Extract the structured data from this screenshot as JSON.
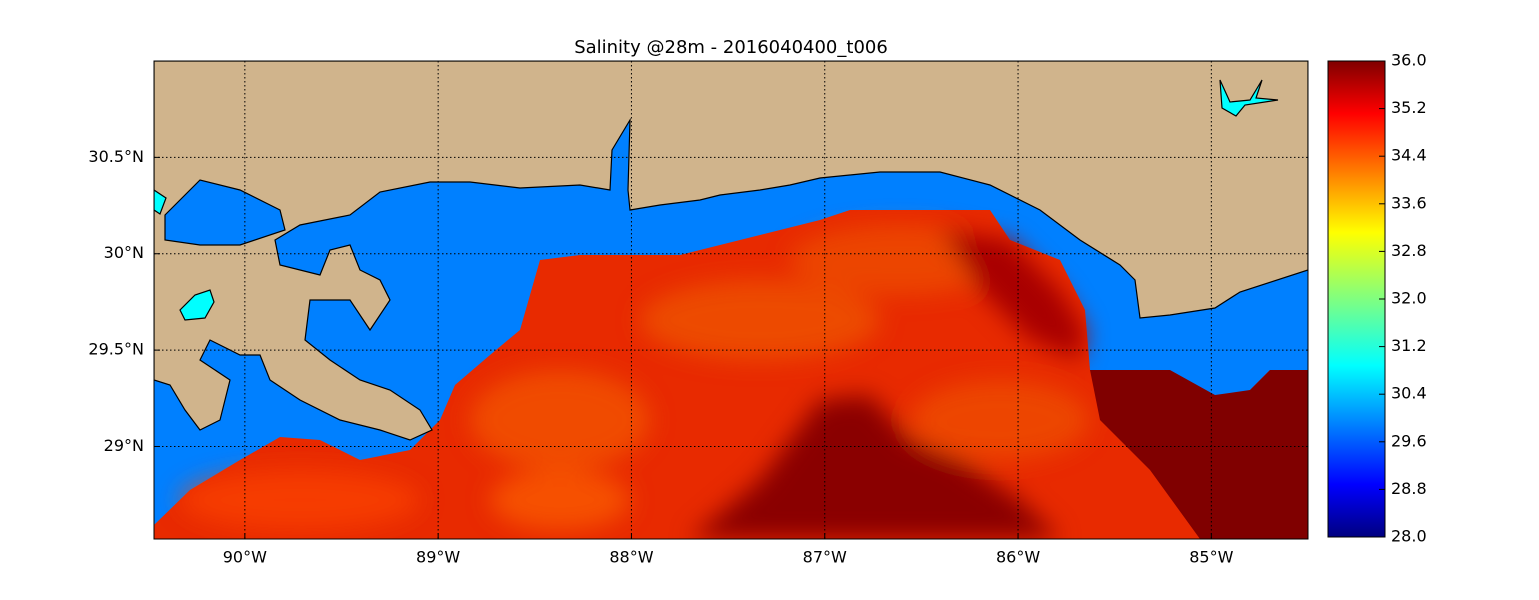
{
  "title": "Salinity @28m - 2016040400_t006",
  "map": {
    "xlim": [
      -90.47,
      -84.5
    ],
    "ylim": [
      28.52,
      31.0
    ],
    "grid": true,
    "xticks": [
      {
        "value": -90,
        "label": "90°W"
      },
      {
        "value": -89,
        "label": "89°W"
      },
      {
        "value": -88,
        "label": "88°W"
      },
      {
        "value": -87,
        "label": "87°W"
      },
      {
        "value": -86,
        "label": "86°W"
      },
      {
        "value": -85,
        "label": "85°W"
      }
    ],
    "yticks": [
      {
        "value": 29,
        "label": "29°N"
      },
      {
        "value": 29.5,
        "label": "29.5°N"
      },
      {
        "value": 30,
        "label": "30°N"
      },
      {
        "value": 30.5,
        "label": "30.5°N"
      }
    ]
  },
  "colorbar": {
    "lim": [
      28,
      36
    ],
    "ticks": [
      {
        "value": 28,
        "label": "28.0"
      },
      28.8,
      29.6,
      30.4,
      31.2,
      {
        "value": 32,
        "label": "32.0"
      },
      32.8,
      33.6,
      34.4,
      35.2,
      {
        "value": 36,
        "label": "36.0"
      }
    ]
  }
}
